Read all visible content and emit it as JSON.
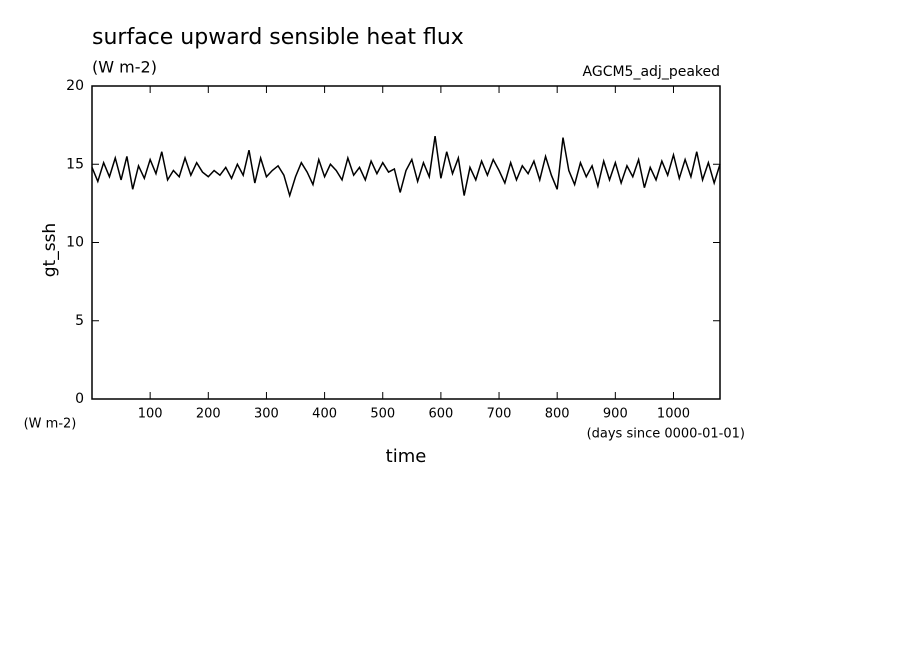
{
  "chart_data": {
    "type": "line",
    "title": "surface upward sensible heat flux",
    "subtitle": "(W m-2)",
    "annotation": "AGCM5_adj_peaked",
    "y_label": "gt_ssh",
    "y_unit": "(W m-2)",
    "x_label": "time",
    "x_unit": "(days since 0000-01-01)",
    "x": [
      0,
      10,
      20,
      30,
      40,
      50,
      60,
      70,
      80,
      90,
      100,
      110,
      120,
      130,
      140,
      150,
      160,
      170,
      180,
      190,
      200,
      210,
      220,
      230,
      240,
      250,
      260,
      270,
      280,
      290,
      300,
      310,
      320,
      330,
      340,
      350,
      360,
      370,
      380,
      390,
      400,
      410,
      420,
      430,
      440,
      450,
      460,
      470,
      480,
      490,
      500,
      510,
      520,
      530,
      540,
      550,
      560,
      570,
      580,
      590,
      600,
      610,
      620,
      630,
      640,
      650,
      660,
      670,
      680,
      690,
      700,
      710,
      720,
      730,
      740,
      750,
      760,
      770,
      780,
      790,
      800,
      810,
      820,
      830,
      840,
      850,
      860,
      870,
      880,
      890,
      900,
      910,
      920,
      930,
      940,
      950,
      960,
      970,
      980,
      990,
      1000,
      1010,
      1020,
      1030,
      1040,
      1050,
      1060,
      1070,
      1080
    ],
    "series": [
      {
        "name": "gt_ssh",
        "color": "#000000",
        "values": [
          14.8,
          13.9,
          15.1,
          14.2,
          15.4,
          14.0,
          15.5,
          13.4,
          14.9,
          14.1,
          15.3,
          14.4,
          15.8,
          14.0,
          14.6,
          14.2,
          15.4,
          14.3,
          15.1,
          14.5,
          14.2,
          14.6,
          14.3,
          14.8,
          14.1,
          15.0,
          14.3,
          15.9,
          13.8,
          15.4,
          14.2,
          14.6,
          14.9,
          14.3,
          13.0,
          14.2,
          15.1,
          14.5,
          13.7,
          15.3,
          14.2,
          15.0,
          14.6,
          14.0,
          15.4,
          14.3,
          14.8,
          14.0,
          15.2,
          14.4,
          15.1,
          14.5,
          14.7,
          13.2,
          14.6,
          15.3,
          13.9,
          15.1,
          14.2,
          16.8,
          14.1,
          15.8,
          14.4,
          15.4,
          13.0,
          14.8,
          14.0,
          15.2,
          14.3,
          15.3,
          14.6,
          13.8,
          15.1,
          14.0,
          14.9,
          14.4,
          15.2,
          14.0,
          15.5,
          14.3,
          13.4,
          16.7,
          14.6,
          13.7,
          15.1,
          14.2,
          14.9,
          13.6,
          15.2,
          14.0,
          15.1,
          13.8,
          14.9,
          14.2,
          15.3,
          13.5,
          14.8,
          14.0,
          15.2,
          14.3,
          15.6,
          14.1,
          15.3,
          14.2,
          15.8,
          14.0,
          15.1,
          13.8,
          15.0
        ]
      }
    ],
    "xlim": [
      0,
      1080
    ],
    "ylim": [
      0,
      20
    ],
    "xticks": [
      100,
      200,
      300,
      400,
      500,
      600,
      700,
      800,
      900,
      1000
    ],
    "yticks": [
      0,
      5,
      10,
      15,
      20
    ]
  }
}
